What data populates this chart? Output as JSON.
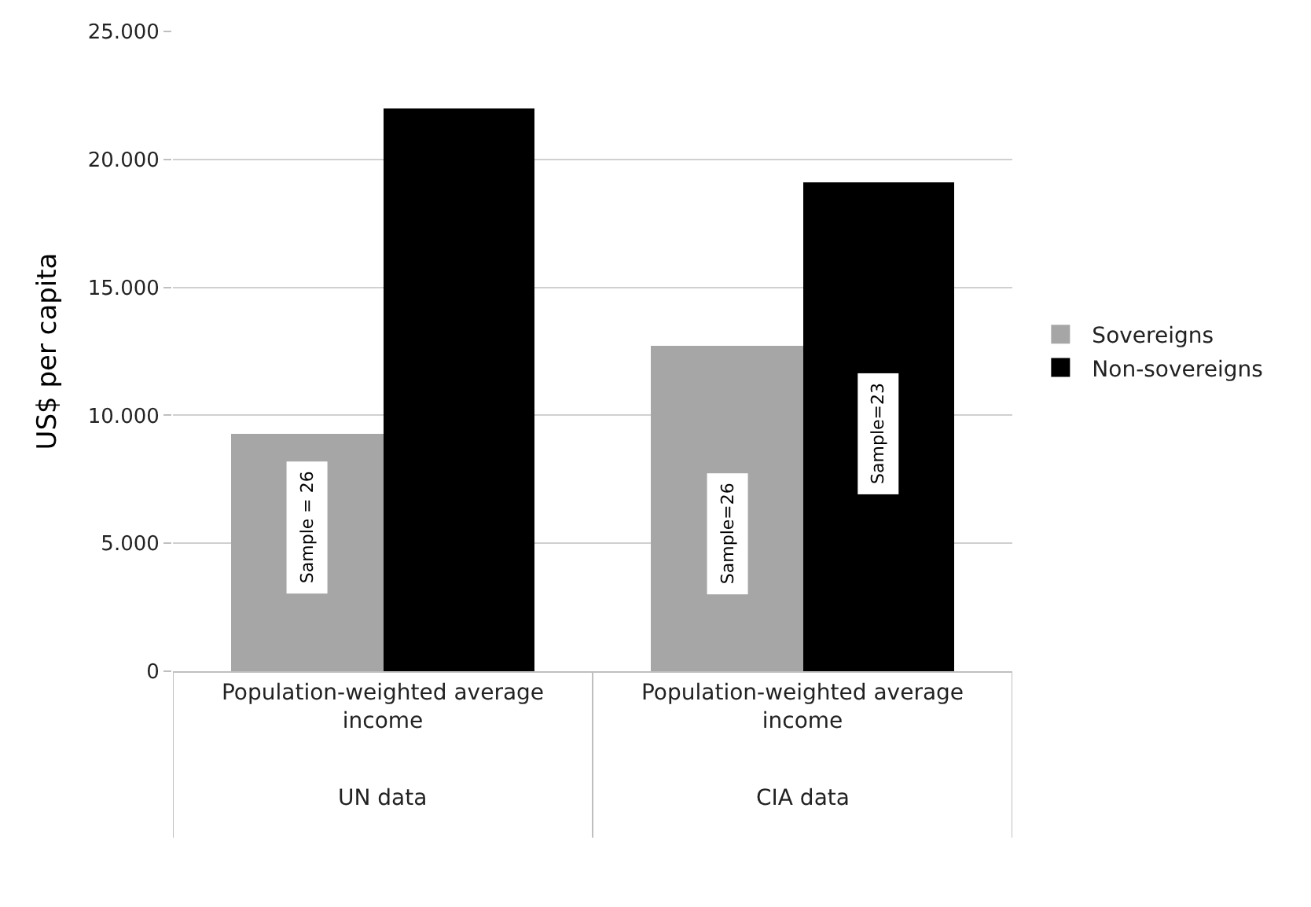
{
  "chart_data": {
    "type": "bar",
    "ylabel": "US$ per capita",
    "categories": [
      "Population-weighted average income",
      "Population-weighted average income"
    ],
    "series": [
      {
        "name": "Sovereigns",
        "color": "#a6a6a6",
        "values": [
          9300,
          12700
        ]
      },
      {
        "name": "Non-sovereigns",
        "color": "#000000",
        "values": [
          22000,
          19100
        ]
      }
    ],
    "annotations": [
      "Sample = 26",
      "Sample=26",
      "Sample=23",
      "UN data",
      "CIA data"
    ],
    "ylim": [
      0,
      25000
    ],
    "yticks": [
      {
        "value": 0,
        "label": "0"
      },
      {
        "value": 5000,
        "label": "5.000"
      },
      {
        "value": 10000,
        "label": "10.000"
      },
      {
        "value": 15000,
        "label": "15.000"
      },
      {
        "value": 20000,
        "label": "20.000"
      },
      {
        "value": 25000,
        "label": "25.000"
      }
    ],
    "grid": "y",
    "legend": "right"
  }
}
